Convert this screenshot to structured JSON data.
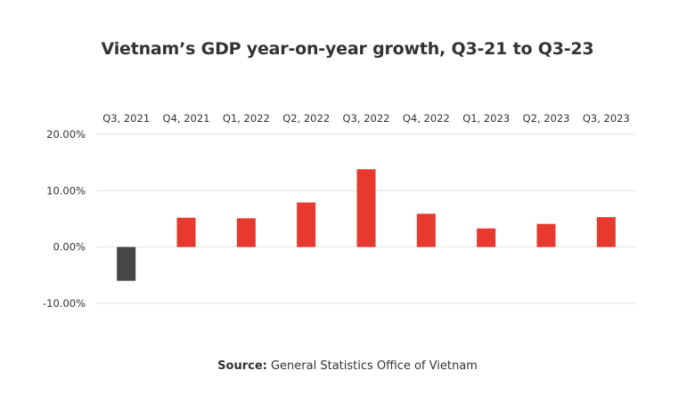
{
  "chart_data": {
    "type": "bar",
    "title": "Vietnam’s GDP year-on-year growth, Q3-21 to Q3-23",
    "xlabel": "",
    "ylabel": "",
    "categories": [
      "Q3, 2021",
      "Q4, 2021",
      "Q1, 2022",
      "Q2, 2022",
      "Q3, 2022",
      "Q4, 2022",
      "Q1, 2023",
      "Q2, 2023",
      "Q3, 2023"
    ],
    "values": [
      -6.0,
      5.2,
      5.1,
      7.9,
      13.8,
      5.9,
      3.3,
      4.1,
      5.3
    ],
    "ylim": [
      -10,
      20
    ],
    "yticks": [
      20,
      10,
      0,
      -10
    ],
    "ytick_labels": [
      "20.00%",
      "10.00%",
      "0.00%",
      "-10.00%"
    ],
    "category_axis_position": "top",
    "grid": true,
    "legend": "none",
    "colors": {
      "positive": "#e8392f",
      "negative": "#464646",
      "grid": "#e3e3e3"
    }
  },
  "source": {
    "label": "Source:",
    "text": " General Statistics Office of Vietnam"
  }
}
